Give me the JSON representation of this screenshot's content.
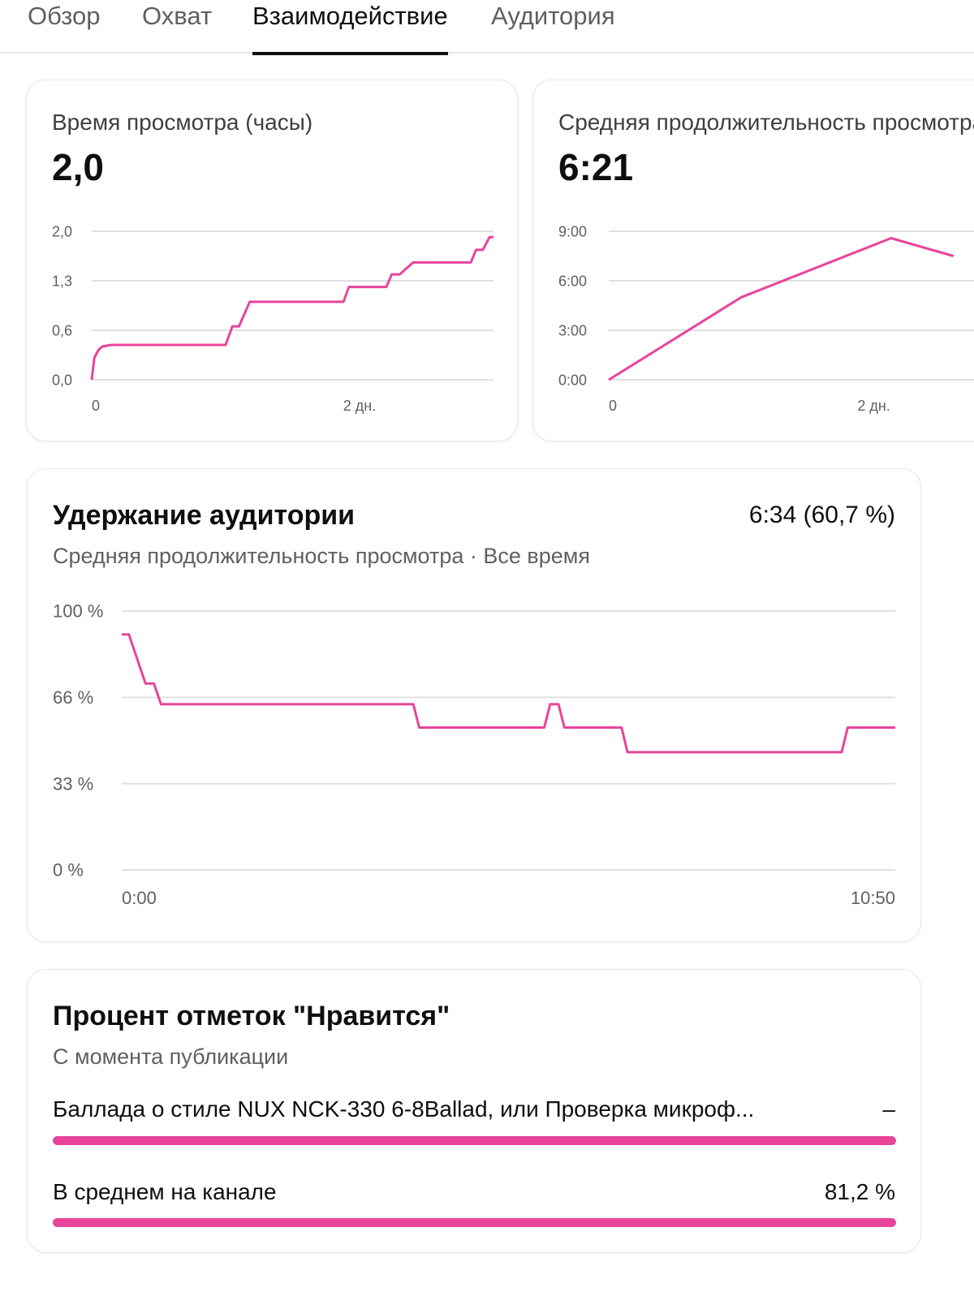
{
  "tabs": [
    {
      "label": "Обзор",
      "active": false
    },
    {
      "label": "Охват",
      "active": false
    },
    {
      "label": "Взаимодействие",
      "active": true
    },
    {
      "label": "Аудитория",
      "active": false
    }
  ],
  "accent_color": "#e8449a",
  "watch_time": {
    "label": "Время просмотра (часы)",
    "value": "2,0"
  },
  "avg_duration": {
    "label": "Средняя продолжительность просмотра",
    "value": "6:21"
  },
  "retention": {
    "title": "Удержание аудитории",
    "summary": "6:34 (60,7 %)",
    "subtitle": "Средняя продолжительность просмотра · Все время"
  },
  "likes": {
    "title": "Процент отметок \"Нравится\"",
    "subtitle": "С момента публикации",
    "rows": [
      {
        "label": "Баллада о стиле NUX NCK-330 6-8Ballad, или Проверка микроф...",
        "value": "–",
        "fill": 1.0
      },
      {
        "label": "В среднем на канале",
        "value": "81,2 %",
        "fill": 1.0
      }
    ]
  },
  "chart_data": [
    {
      "type": "line",
      "title": "Время просмотра (часы)",
      "y_ticks": [
        "0,0",
        "0,6",
        "1,3",
        "2,0"
      ],
      "ylim": [
        0,
        2.0
      ],
      "x_ticks": [
        {
          "value": 0,
          "label": "0"
        },
        {
          "value": 2,
          "label": "2 дн."
        }
      ],
      "xlim": [
        0,
        3.0
      ],
      "grid": true,
      "series": [
        {
          "x": [
            0,
            0.02,
            0.05,
            0.08,
            0.15,
            1.0,
            1.05,
            1.1,
            1.18,
            1.88,
            1.92,
            2.2,
            2.24,
            2.3,
            2.4,
            2.83,
            2.87,
            2.92,
            2.97,
            3.0
          ],
          "y": [
            0,
            0.3,
            0.4,
            0.45,
            0.47,
            0.47,
            0.72,
            0.72,
            1.05,
            1.05,
            1.25,
            1.25,
            1.42,
            1.42,
            1.58,
            1.58,
            1.75,
            1.75,
            1.92,
            1.92
          ]
        }
      ]
    },
    {
      "type": "line",
      "title": "Средняя продолжительность просмотра",
      "y_ticks": [
        "0:00",
        "3:00",
        "6:00",
        "9:00"
      ],
      "ylim": [
        0,
        540
      ],
      "x_ticks": [
        {
          "value": 0,
          "label": "0"
        },
        {
          "value": 2,
          "label": "2 дн."
        }
      ],
      "xlim": [
        0,
        3.0
      ],
      "grid": true,
      "series": [
        {
          "x": [
            0,
            1.0,
            2.13,
            2.6
          ],
          "y": [
            0,
            300,
            515,
            450
          ]
        }
      ]
    },
    {
      "type": "line",
      "title": "Удержание аудитории",
      "y_ticks": [
        "0 %",
        "33 %",
        "66 %",
        "100 %"
      ],
      "ylim": [
        0,
        100
      ],
      "x_ticks": [
        {
          "value": 0,
          "label": "0:00"
        },
        {
          "value": 650,
          "label": "10:50"
        }
      ],
      "xlim": [
        0,
        650
      ],
      "grid": true,
      "series": [
        {
          "x": [
            0,
            6,
            20,
            27,
            33,
            245,
            250,
            355,
            360,
            367,
            372,
            420,
            425,
            605,
            610,
            650
          ],
          "y": [
            91,
            91,
            72,
            72,
            64,
            64,
            55,
            55,
            64,
            64,
            55,
            55,
            45.5,
            45.5,
            55,
            55
          ]
        }
      ]
    }
  ]
}
